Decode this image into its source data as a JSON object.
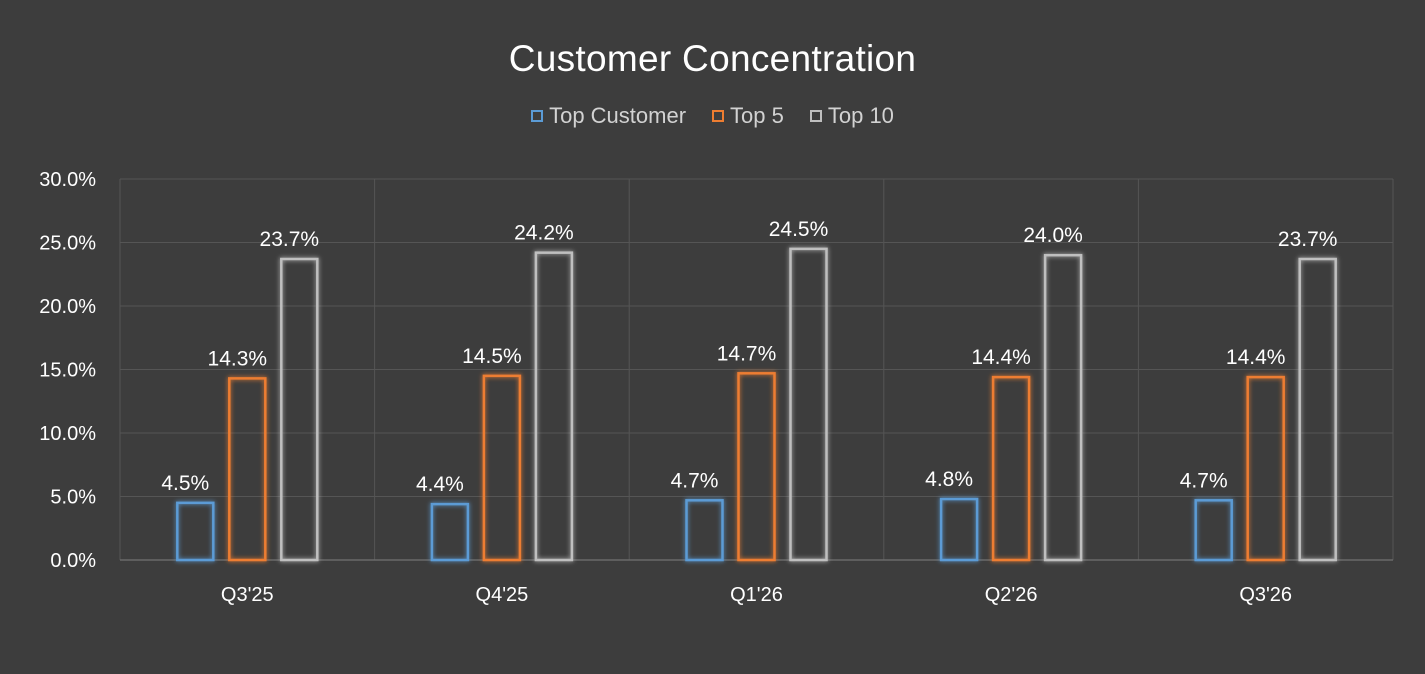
{
  "chart_data": {
    "type": "bar",
    "title": "Customer Concentration",
    "categories": [
      "Q3'25",
      "Q4'25",
      "Q1'26",
      "Q2'26",
      "Q3'26"
    ],
    "series": [
      {
        "name": "Top Customer",
        "color": "#5b9bd5",
        "values": [
          4.5,
          4.4,
          4.7,
          4.8,
          4.7
        ],
        "labels": [
          "4.5%",
          "4.4%",
          "4.7%",
          "4.8%",
          "4.7%"
        ]
      },
      {
        "name": "Top 5",
        "color": "#ed7d31",
        "values": [
          14.3,
          14.5,
          14.7,
          14.4,
          14.4
        ],
        "labels": [
          "14.3%",
          "14.5%",
          "14.7%",
          "14.4%",
          "14.4%"
        ]
      },
      {
        "name": "Top 10",
        "color": "#bfbfbf",
        "values": [
          23.7,
          24.2,
          24.5,
          24.0,
          23.7
        ],
        "labels": [
          "23.7%",
          "24.2%",
          "24.5%",
          "24.0%",
          "23.7%"
        ]
      }
    ],
    "yticks": [
      0,
      5,
      10,
      15,
      20,
      25,
      30
    ],
    "ytick_labels": [
      "0.0%",
      "5.0%",
      "10.0%",
      "15.0%",
      "20.0%",
      "25.0%",
      "30.0%"
    ],
    "ylim": [
      0,
      30
    ],
    "xlabel": "",
    "ylabel": "",
    "grid": true,
    "legend_position": "top-center"
  }
}
